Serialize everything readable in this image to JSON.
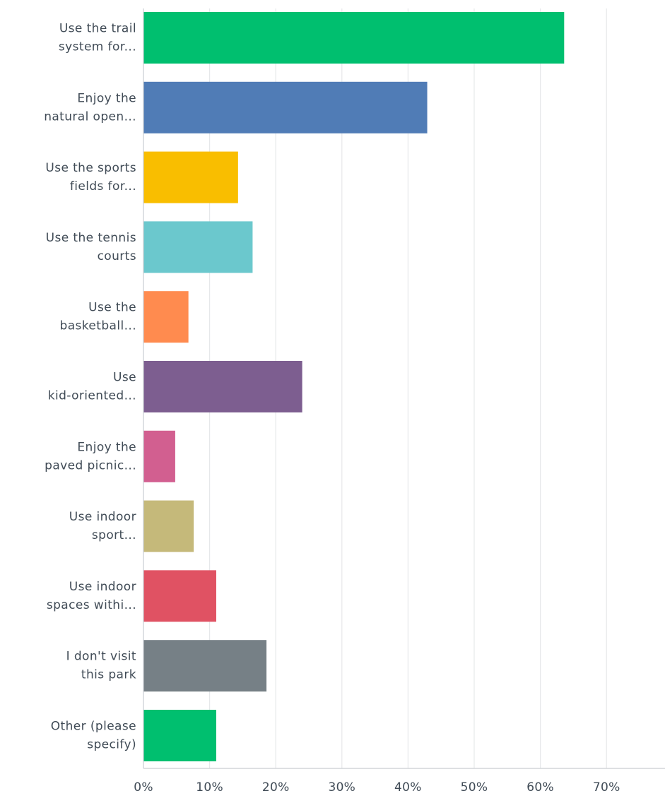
{
  "chart_data": {
    "type": "bar",
    "orientation": "horizontal",
    "categories": [
      [
        "Use the trail",
        "system for..."
      ],
      [
        "Enjoy the",
        "natural open..."
      ],
      [
        "Use the sports",
        "fields for..."
      ],
      [
        "Use the tennis",
        "courts"
      ],
      [
        "Use the",
        "basketball..."
      ],
      [
        "Use",
        "kid-oriented..."
      ],
      [
        "Enjoy the",
        "paved picnic..."
      ],
      [
        "Use indoor",
        "sport..."
      ],
      [
        "Use indoor",
        "spaces withi..."
      ],
      [
        "I don't visit",
        "this park"
      ],
      [
        "Other (please",
        "specify)"
      ]
    ],
    "values": [
      63.6,
      42.9,
      14.3,
      16.5,
      6.8,
      24.0,
      4.8,
      7.6,
      11.0,
      18.6,
      11.0
    ],
    "colors": [
      "#00bf6f",
      "#507cb6",
      "#f9be00",
      "#6bc8cd",
      "#ff8b4f",
      "#7d5e90",
      "#d25f90",
      "#c5b97a",
      "#e05263",
      "#768086",
      "#00bf6f"
    ],
    "x_ticks": [
      "0%",
      "10%",
      "20%",
      "30%",
      "40%",
      "50%",
      "60%",
      "70%"
    ],
    "xlim": [
      0,
      70
    ],
    "grid": true,
    "title": "",
    "xlabel": "",
    "ylabel": ""
  }
}
